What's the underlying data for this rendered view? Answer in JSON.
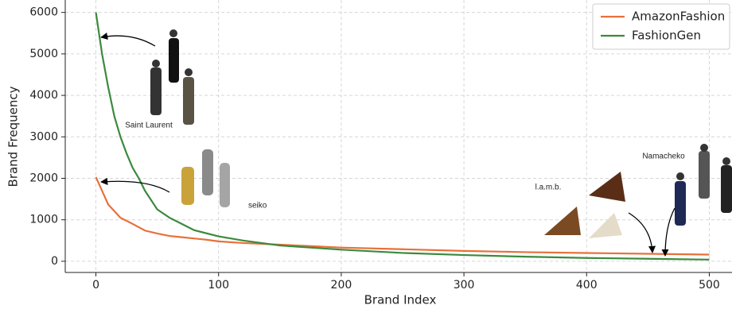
{
  "chart_data": {
    "type": "line",
    "xlabel": "Brand Index",
    "ylabel": "Brand Frequency",
    "xlim": [
      -25,
      525
    ],
    "ylim": [
      -270,
      6300
    ],
    "xticks": [
      0,
      100,
      200,
      300,
      400,
      500
    ],
    "yticks": [
      0,
      1000,
      2000,
      3000,
      4000,
      5000,
      6000
    ],
    "grid": true,
    "legend": "upper right",
    "series": [
      {
        "name": "AmazonFashion",
        "color": "#e8703a",
        "x": [
          0,
          10,
          20,
          30,
          40,
          50,
          60,
          70,
          80,
          90,
          100,
          120,
          150,
          200,
          250,
          300,
          350,
          400,
          450,
          500
        ],
        "values": [
          2030,
          1370,
          1050,
          900,
          740,
          670,
          610,
          580,
          550,
          520,
          480,
          440,
          400,
          330,
          290,
          250,
          220,
          200,
          180,
          160
        ]
      },
      {
        "name": "FashionGen",
        "color": "#3b8a3e",
        "x": [
          0,
          5,
          10,
          15,
          20,
          25,
          30,
          35,
          40,
          50,
          60,
          70,
          80,
          100,
          120,
          150,
          200,
          250,
          300,
          350,
          400,
          450,
          500
        ],
        "values": [
          6000,
          5000,
          4200,
          3500,
          3000,
          2600,
          2250,
          2000,
          1700,
          1250,
          1050,
          900,
          750,
          600,
          500,
          380,
          280,
          200,
          150,
          110,
          80,
          60,
          40
        ]
      }
    ],
    "annotations": [
      "Saint Laurent",
      "seiko",
      "l.a.m.b.",
      "Namacheko"
    ]
  }
}
